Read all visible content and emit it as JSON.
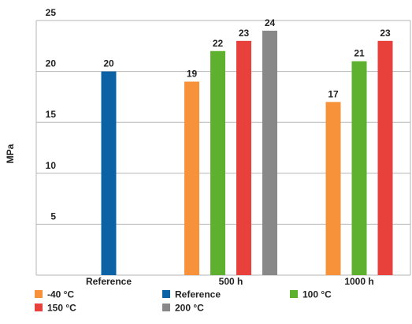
{
  "chart_data": {
    "type": "bar",
    "title": "",
    "xlabel": "",
    "ylabel": "MPa",
    "ylim": [
      0,
      25
    ],
    "yticks": [
      5,
      10,
      15,
      20,
      25
    ],
    "grid": true,
    "legend_position": "bottom",
    "categories": [
      "Reference",
      "500 h",
      "1000 h"
    ],
    "series": [
      {
        "name": "-40 °C",
        "color": "#f7913a",
        "values": [
          null,
          19,
          17
        ]
      },
      {
        "name": "Reference",
        "color": "#0b63a5",
        "values": [
          20,
          null,
          null
        ]
      },
      {
        "name": "100 °C",
        "color": "#5db12f",
        "values": [
          null,
          22,
          21
        ]
      },
      {
        "name": "150 °C",
        "color": "#e8413c",
        "values": [
          null,
          23,
          23
        ]
      },
      {
        "name": "200 °C",
        "color": "#888888",
        "values": [
          null,
          24,
          null
        ]
      }
    ]
  }
}
